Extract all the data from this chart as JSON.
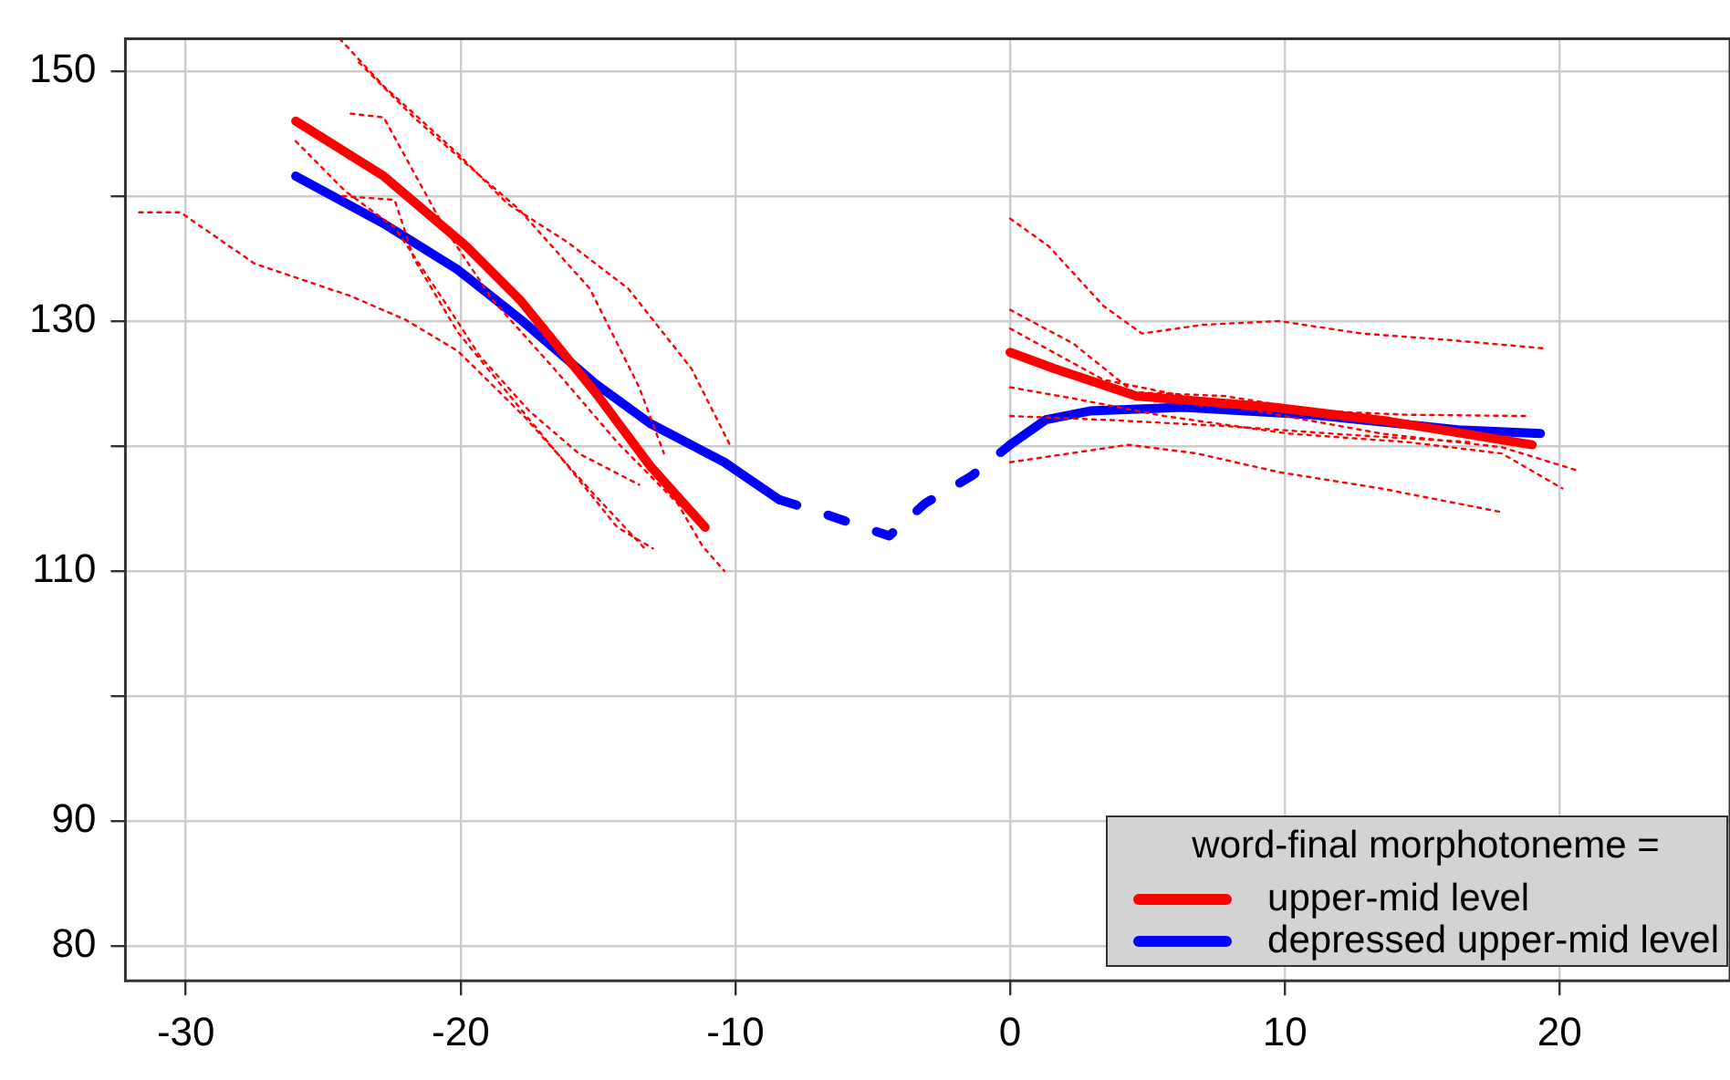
{
  "chart_data": {
    "type": "line",
    "legend_title": "word-final morphotoneme =",
    "legend": "bottom right",
    "grid": true,
    "xlim": [
      -32.2,
      26.2
    ],
    "xticks": [
      -30,
      -20,
      -10,
      0,
      10,
      20
    ],
    "ylim": [
      77.2,
      152.6
    ],
    "yticks": [
      80,
      90,
      {
        "value": 100,
        "label": null
      },
      110,
      {
        "value": 120,
        "label": null
      },
      130,
      {
        "value": 140,
        "label": null
      },
      150
    ],
    "series": [
      {
        "color": "#ff0000",
        "line_style": "dotted",
        "x": [
          -31.7,
          -30.2,
          -27.5,
          -24,
          -22,
          -20.1,
          -17.7,
          -15.3,
          -13.3
        ],
        "values": [
          138.7,
          138.7,
          134.6,
          132,
          130.1,
          127.6,
          122.4,
          116.5,
          111.8
        ]
      },
      {
        "color": "#ff0000",
        "line_style": "dotted",
        "x": [
          -24.4,
          -22.8,
          -20.1,
          -18.3,
          -16.1,
          -13.9,
          -11.6,
          -10.2
        ],
        "values": [
          152.6,
          148.8,
          143.4,
          139.4,
          136.3,
          132.6,
          126.2,
          120.1
        ]
      },
      {
        "color": "#ff0000",
        "line_style": "dotted",
        "x": [
          -23.7,
          -21.7,
          -19.7,
          -17.9,
          -15.3,
          -13.5,
          -12.6
        ],
        "values": [
          150.7,
          146.3,
          142.4,
          139,
          132.6,
          124.7,
          119.4
        ]
      },
      {
        "color": "#ff0000",
        "line_style": "dotted",
        "x": [
          -24,
          -22.8,
          -21.7,
          -20.6,
          -18.8,
          -16.6,
          -14.3,
          -12.1,
          -11.2,
          -10.4
        ],
        "values": [
          146.6,
          146.3,
          141.9,
          137.5,
          131.6,
          126.2,
          120.3,
          115.4,
          112,
          110
        ]
      },
      {
        "color": "#ff0000",
        "line_style": "dotted",
        "x": [
          -26,
          -24.2,
          -22.4,
          -20.6,
          -19.3,
          -17.5,
          -15.7,
          -13.5
        ],
        "values": [
          144.4,
          140.4,
          137.5,
          131.6,
          127.2,
          122.8,
          119.4,
          116.9
        ]
      },
      {
        "color": "#ff0000",
        "line_style": "dotted",
        "x": [
          -24.3,
          -22.4,
          -21.7,
          -20.1,
          -17.9,
          -16.1,
          -14.3,
          -13
        ],
        "values": [
          140,
          139.7,
          135,
          129.1,
          123.2,
          118.4,
          113.5,
          111.8
        ]
      },
      {
        "color": "#ff0000",
        "line_style": "dotted",
        "x": [
          0,
          1.4,
          3.4,
          4.8,
          7,
          9.8,
          12.8,
          15.9,
          19.5
        ],
        "values": [
          138.2,
          136,
          131.2,
          129,
          129.7,
          130,
          129,
          128.5,
          127.8
        ]
      },
      {
        "color": "#ff0000",
        "line_style": "dotted",
        "x": [
          0,
          2.3,
          4.5,
          7.8,
          11.2,
          14.5,
          18.8
        ],
        "values": [
          130.9,
          128.2,
          124.3,
          124,
          122.8,
          122.5,
          122.4
        ]
      },
      {
        "color": "#ff0000",
        "line_style": "dotted",
        "x": [
          0,
          3.4,
          9,
          13.5,
          17.9,
          20.7
        ],
        "values": [
          129.4,
          125.3,
          122.8,
          121,
          119.9,
          118
        ]
      },
      {
        "color": "#ff0000",
        "line_style": "dotted",
        "x": [
          0,
          2.3,
          5.6,
          10.1,
          14.5,
          17.9,
          20.1
        ],
        "values": [
          124.7,
          123.8,
          122.4,
          121,
          120.3,
          119.4,
          116.6
        ]
      },
      {
        "color": "#ff0000",
        "line_style": "dotted",
        "x": [
          0,
          3.4,
          7.8,
          12.3,
          16.8
        ],
        "values": [
          122.4,
          122.1,
          121.6,
          120.9,
          120.3
        ]
      },
      {
        "color": "#ff0000",
        "line_style": "dotted",
        "x": [
          0,
          4.3,
          6.8,
          9.8,
          13.5,
          17.9
        ],
        "values": [
          118.7,
          120.1,
          119.4,
          117.9,
          116.6,
          114.7
        ]
      },
      {
        "name": "upper-mid level",
        "color": "#ff0000",
        "line_style": "solid",
        "x": [
          -26,
          -22.8,
          -19.8,
          -17.8,
          -15.1,
          -13.1,
          -11.1,
          null,
          0,
          1.6,
          4.6,
          9.6,
          13.7,
          19
        ],
        "values": [
          146,
          141.6,
          136,
          131.6,
          124.3,
          118.4,
          113.5,
          null,
          127.5,
          126.2,
          124,
          123.1,
          122,
          120.1
        ]
      },
      {
        "name": "depressed upper-mid level",
        "color": "#0000ff",
        "line_style": "solid",
        "x": [
          -26,
          -22.8,
          -20.1,
          -17.8,
          -15.1,
          -13.1,
          -10.4,
          -8.4,
          null,
          0,
          1.3,
          2.9,
          6.3,
          11,
          16.3,
          19.3
        ],
        "values": [
          141.6,
          137.8,
          134.1,
          130.1,
          125,
          121.8,
          118.7,
          115.7,
          null,
          120.1,
          122.1,
          122.8,
          123.1,
          122.5,
          121.3,
          121
        ]
      },
      {
        "color": "#0000ff",
        "line_style": "dashed",
        "x": [
          -8.4,
          -6.8,
          -4.4,
          -3.1,
          -1.4,
          0
        ],
        "values": [
          115.7,
          114.6,
          112.8,
          115.4,
          117.6,
          120.1
        ]
      }
    ]
  }
}
